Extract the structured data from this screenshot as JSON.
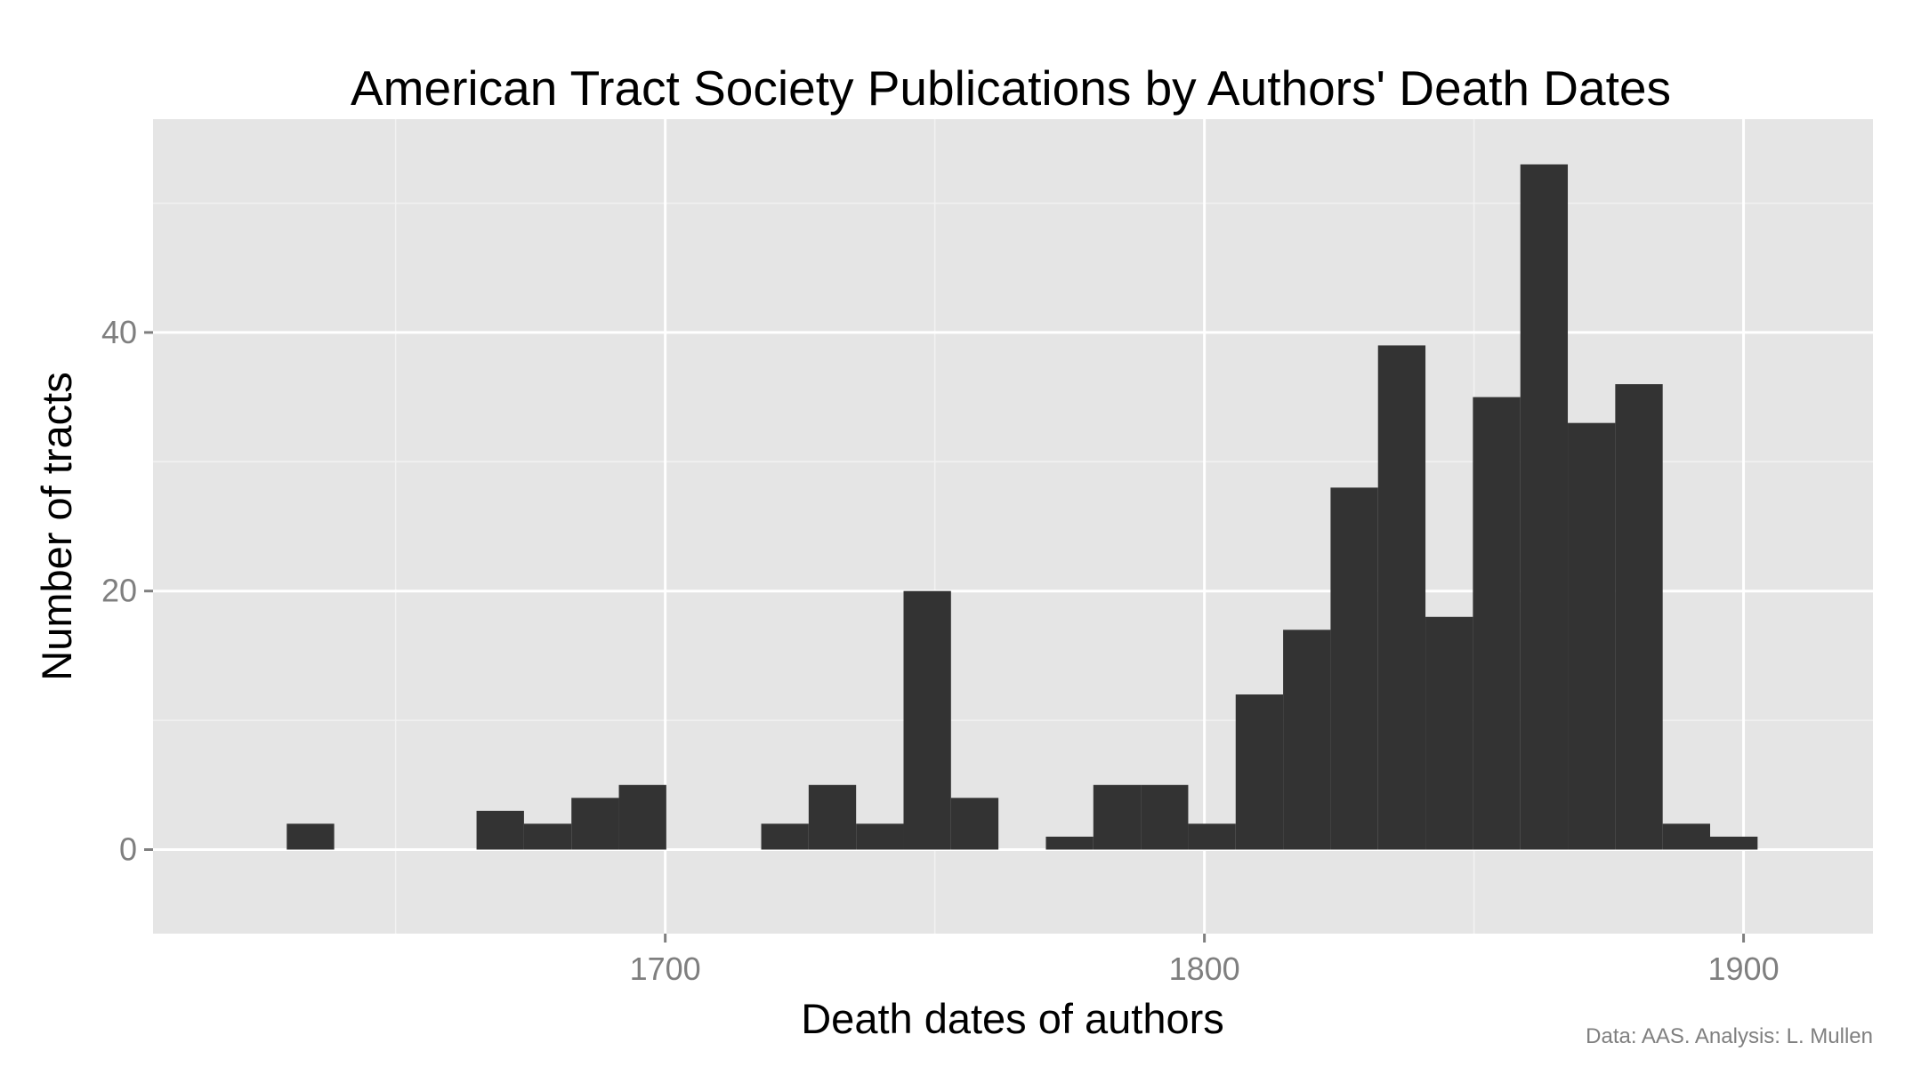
{
  "chart_data": {
    "type": "bar",
    "title": "American Tract Society Publications by Authors' Death Dates",
    "xlabel": "Death dates of authors",
    "ylabel": "Number of tracts",
    "caption": "Data: AAS. Analysis: L. Mullen",
    "xlim": [
      1605,
      1924
    ],
    "ylim": [
      -6.5,
      56.5
    ],
    "x_ticks": [
      1700,
      1800,
      1900
    ],
    "y_ticks": [
      0,
      20,
      40
    ],
    "grid": true,
    "legend": "none",
    "bin_width": 8.8,
    "bins": [
      {
        "x0": 1629.8,
        "x1": 1638.6,
        "count": 2
      },
      {
        "x0": 1638.6,
        "x1": 1647.4,
        "count": 0
      },
      {
        "x0": 1647.4,
        "x1": 1656.2,
        "count": 0
      },
      {
        "x0": 1656.2,
        "x1": 1665.0,
        "count": 0
      },
      {
        "x0": 1665.0,
        "x1": 1673.8,
        "count": 3
      },
      {
        "x0": 1673.8,
        "x1": 1682.6,
        "count": 2
      },
      {
        "x0": 1682.6,
        "x1": 1691.4,
        "count": 4
      },
      {
        "x0": 1691.4,
        "x1": 1700.2,
        "count": 5
      },
      {
        "x0": 1700.2,
        "x1": 1709.0,
        "count": 0
      },
      {
        "x0": 1709.0,
        "x1": 1717.8,
        "count": 0
      },
      {
        "x0": 1717.8,
        "x1": 1726.6,
        "count": 2
      },
      {
        "x0": 1726.6,
        "x1": 1735.4,
        "count": 5
      },
      {
        "x0": 1735.4,
        "x1": 1744.2,
        "count": 2
      },
      {
        "x0": 1744.2,
        "x1": 1753.0,
        "count": 20
      },
      {
        "x0": 1753.0,
        "x1": 1761.8,
        "count": 4
      },
      {
        "x0": 1761.8,
        "x1": 1770.6,
        "count": 0
      },
      {
        "x0": 1770.6,
        "x1": 1779.4,
        "count": 1
      },
      {
        "x0": 1779.4,
        "x1": 1788.2,
        "count": 5
      },
      {
        "x0": 1788.2,
        "x1": 1797.0,
        "count": 5
      },
      {
        "x0": 1797.0,
        "x1": 1805.8,
        "count": 2
      },
      {
        "x0": 1805.8,
        "x1": 1814.6,
        "count": 12
      },
      {
        "x0": 1814.6,
        "x1": 1823.4,
        "count": 17
      },
      {
        "x0": 1823.4,
        "x1": 1832.2,
        "count": 28
      },
      {
        "x0": 1832.2,
        "x1": 1841.0,
        "count": 39
      },
      {
        "x0": 1841.0,
        "x1": 1849.8,
        "count": 18
      },
      {
        "x0": 1849.8,
        "x1": 1858.6,
        "count": 35
      },
      {
        "x0": 1858.6,
        "x1": 1867.4,
        "count": 53
      },
      {
        "x0": 1867.4,
        "x1": 1876.2,
        "count": 33
      },
      {
        "x0": 1876.2,
        "x1": 1885.0,
        "count": 36
      },
      {
        "x0": 1885.0,
        "x1": 1893.8,
        "count": 2
      },
      {
        "x0": 1893.8,
        "x1": 1902.6,
        "count": 1
      }
    ]
  },
  "colors": {
    "panel": "#e5e5e5",
    "bar": "#333333",
    "grid": "#ffffff",
    "tick_text": "#7f7f7f"
  }
}
